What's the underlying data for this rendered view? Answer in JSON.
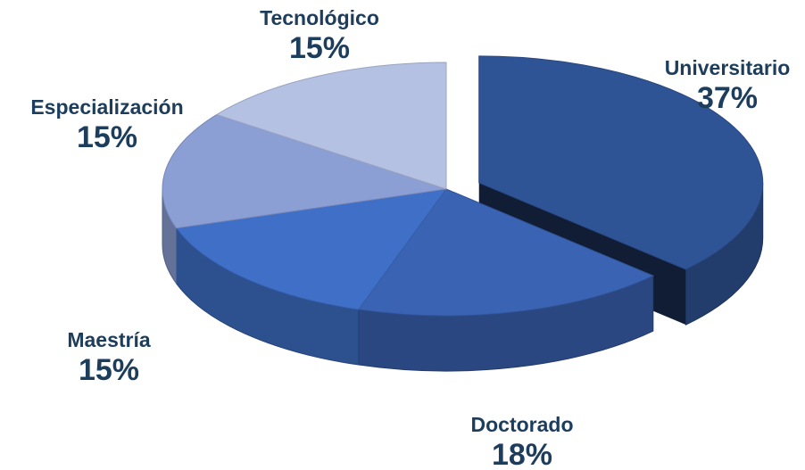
{
  "chart_data": {
    "type": "pie",
    "categories": [
      "Universitario",
      "Doctorado",
      "Maestría",
      "Especialización",
      "Tecnológico"
    ],
    "values": [
      37,
      18,
      15,
      15,
      15
    ],
    "value_labels": [
      "37%",
      "18%",
      "15%",
      "15%",
      "15%"
    ],
    "colors": [
      "#2f5496",
      "#3a63b3",
      "#3f6fc6",
      "#8b9fd5",
      "#b5c1e2"
    ],
    "exploded": [
      0
    ]
  }
}
